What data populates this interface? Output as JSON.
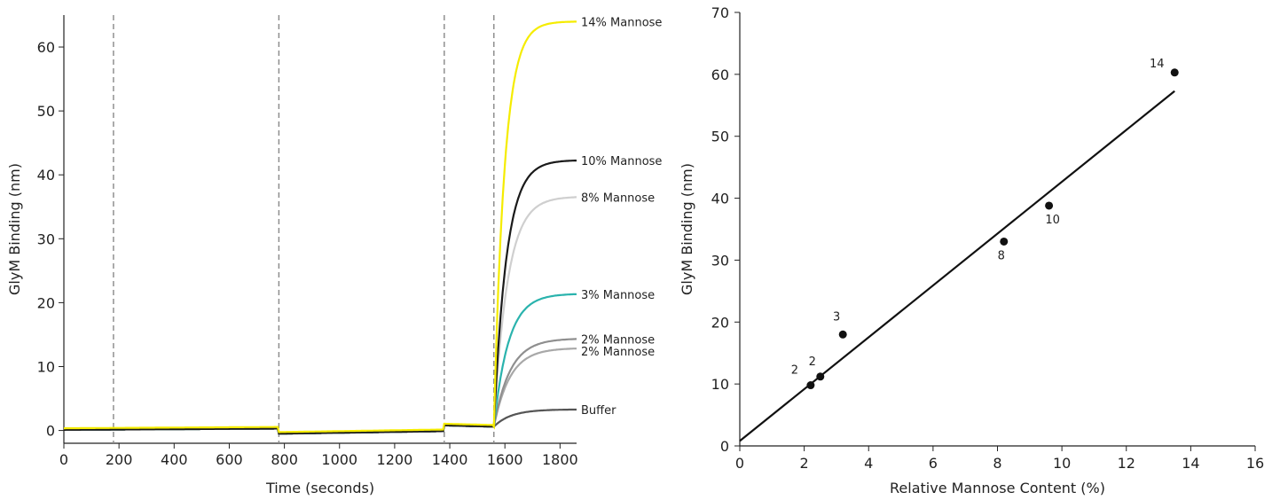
{
  "chart_data": [
    {
      "type": "line",
      "xlabel": "Time (seconds)",
      "ylabel": "GlyM Binding (nm)",
      "xlim": [
        0,
        1860
      ],
      "ylim": [
        -2,
        65
      ],
      "xticks": [
        0,
        200,
        400,
        600,
        800,
        1000,
        1200,
        1400,
        1600,
        1800
      ],
      "yticks": [
        0,
        10,
        20,
        30,
        40,
        50,
        60
      ],
      "grid": false,
      "step_markers_x": [
        180,
        780,
        1380,
        1560
      ],
      "association_start_x": 1560,
      "series": [
        {
          "name": "14% Mannose",
          "color": "#f5ec00",
          "final_value": 64.0,
          "rate": 0.026
        },
        {
          "name": "10% Mannose",
          "color": "#1a1a1a",
          "final_value": 42.3,
          "rate": 0.022
        },
        {
          "name": "8% Mannose",
          "color": "#cfcfcf",
          "final_value": 36.6,
          "rate": 0.02
        },
        {
          "name": "3% Mannose",
          "color": "#2ab3ad",
          "final_value": 21.4,
          "rate": 0.019
        },
        {
          "name": "2% Mannose",
          "color": "#8f8f8f",
          "final_value": 14.4,
          "rate": 0.017
        },
        {
          "name": "2% Mannose",
          "color": "#a8a8a8",
          "final_value": 12.9,
          "rate": 0.017
        },
        {
          "name": "Buffer",
          "color": "#555555",
          "final_value": 3.3,
          "rate": 0.016
        }
      ]
    },
    {
      "type": "scatter",
      "xlabel": "Relative Mannose Content (%)",
      "ylabel": "GlyM Binding (nm)",
      "xlim": [
        0,
        16
      ],
      "ylim": [
        0,
        70
      ],
      "xticks": [
        0,
        2,
        4,
        6,
        8,
        10,
        12,
        14,
        16
      ],
      "yticks": [
        0,
        10,
        20,
        30,
        40,
        50,
        60,
        70
      ],
      "grid": false,
      "points": [
        {
          "label": "2",
          "x": 2.2,
          "y": 9.8
        },
        {
          "label": "2",
          "x": 2.5,
          "y": 11.2
        },
        {
          "label": "3",
          "x": 3.2,
          "y": 18.0
        },
        {
          "label": "8",
          "x": 8.2,
          "y": 33.0
        },
        {
          "label": "10",
          "x": 9.6,
          "y": 38.8
        },
        {
          "label": "14",
          "x": 13.5,
          "y": 60.3
        }
      ],
      "fit_line": {
        "x": [
          0,
          13.5
        ],
        "y": [
          0.8,
          57.3
        ]
      }
    }
  ]
}
